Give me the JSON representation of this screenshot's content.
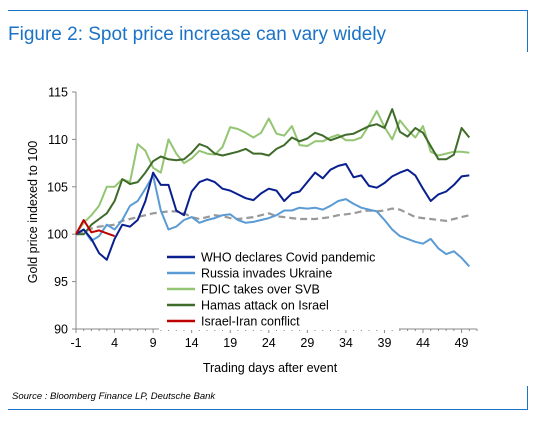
{
  "title": "Figure 2: Spot price increase can vary widely",
  "source": "Source : Bloomberg Finance LP, Deutsche Bank",
  "chart_data": {
    "type": "line",
    "xlabel": "Trading days after event",
    "ylabel": "Gold price indexed to 100",
    "xlim": [
      -1,
      51
    ],
    "ylim": [
      90,
      115
    ],
    "xticks": [
      -1,
      4,
      9,
      14,
      19,
      24,
      29,
      34,
      39,
      44,
      49
    ],
    "yticks": [
      90,
      95,
      100,
      105,
      110,
      115
    ],
    "grid": false,
    "legend_position": "bottom-center",
    "series": [
      {
        "name": "WHO declares Covid pandemic",
        "color": "#0a1f8f",
        "dashed": false,
        "x": [
          -1,
          0,
          1,
          2,
          3,
          4,
          5,
          6,
          7,
          8,
          9,
          10,
          11,
          12,
          13,
          14,
          15,
          16,
          17,
          18,
          19,
          20,
          21,
          22,
          23,
          24,
          25,
          26,
          27,
          28,
          29,
          30,
          31,
          32,
          33,
          34,
          35,
          36,
          37,
          38,
          39,
          40,
          41,
          42,
          43,
          44,
          45,
          46,
          47,
          48,
          49,
          50
        ],
        "y": [
          100,
          100.5,
          99.5,
          98,
          97.3,
          99.5,
          101,
          100.8,
          101.5,
          103.5,
          106.5,
          105.2,
          105.2,
          102.5,
          102,
          104.5,
          105.5,
          105.8,
          105.5,
          104.8,
          104.6,
          104.2,
          103.8,
          103.6,
          104.3,
          104.8,
          104.6,
          103.5,
          104.3,
          104.5,
          105.5,
          106.5,
          105.9,
          106.8,
          107.2,
          107.4,
          106.0,
          106.2,
          105.1,
          104.9,
          105.4,
          106.1,
          106.5,
          106.8,
          106.2,
          104.8,
          103.5,
          104.2,
          104.5,
          105.2,
          106.1,
          106.2
        ]
      },
      {
        "name": "Russia invades Ukraine",
        "color": "#5b9bd5",
        "dashed": false,
        "x": [
          -1,
          0,
          1,
          2,
          3,
          4,
          5,
          6,
          7,
          8,
          9,
          10,
          11,
          12,
          13,
          14,
          15,
          16,
          17,
          18,
          19,
          20,
          21,
          22,
          23,
          24,
          25,
          26,
          27,
          28,
          29,
          30,
          31,
          32,
          33,
          34,
          35,
          36,
          37,
          38,
          39,
          40,
          41,
          42,
          43,
          44,
          45,
          46,
          47,
          48,
          49,
          50
        ],
        "y": [
          100,
          100.5,
          99.3,
          99.8,
          101,
          100.5,
          101.5,
          103,
          103.5,
          104.8,
          106.2,
          102.5,
          100.5,
          100.8,
          101.5,
          101.8,
          101.2,
          101.5,
          101.7,
          102,
          102.1,
          101.5,
          101.2,
          101.3,
          101.5,
          101.7,
          102,
          102.5,
          102.5,
          102.8,
          102.7,
          102.8,
          102.6,
          103,
          103.5,
          103.7,
          103.2,
          102.8,
          102.6,
          102.4,
          101.5,
          100.5,
          99.8,
          99.5,
          99.2,
          99,
          99.5,
          98.5,
          97.9,
          98.2,
          97.5,
          96.6
        ]
      },
      {
        "name": "FDIC takes over SVB",
        "color": "#93c572",
        "dashed": false,
        "x": [
          -1,
          0,
          1,
          2,
          3,
          4,
          5,
          6,
          7,
          8,
          9,
          10,
          11,
          12,
          13,
          14,
          15,
          16,
          17,
          18,
          19,
          20,
          21,
          22,
          23,
          24,
          25,
          26,
          27,
          28,
          29,
          30,
          31,
          32,
          33,
          34,
          35,
          36,
          37,
          38,
          39,
          40,
          41,
          42,
          43,
          44,
          45,
          46,
          47,
          48,
          49,
          50
        ],
        "y": [
          100,
          101.2,
          102,
          103,
          105,
          105,
          105.8,
          105.5,
          109.5,
          108.8,
          107,
          106.5,
          110,
          108.5,
          107.5,
          108,
          108.8,
          108.5,
          108.4,
          109.2,
          111.3,
          111.1,
          110.7,
          110.2,
          110.7,
          112.2,
          110.6,
          110.4,
          111.4,
          109.4,
          109.3,
          109.8,
          109.8,
          110.2,
          110.5,
          109.9,
          109.9,
          110.2,
          111.5,
          113,
          111.3,
          110,
          112,
          111,
          110.2,
          111.4,
          108.7,
          108.3,
          108.5,
          108.7,
          108.7,
          108.6
        ]
      },
      {
        "name": "Hamas attack on Israel",
        "color": "#3f6b2a",
        "dashed": false,
        "x": [
          -1,
          0,
          1,
          2,
          3,
          4,
          5,
          6,
          7,
          8,
          9,
          10,
          11,
          12,
          13,
          14,
          15,
          16,
          17,
          18,
          19,
          20,
          21,
          22,
          23,
          24,
          25,
          26,
          27,
          28,
          29,
          30,
          31,
          32,
          33,
          34,
          35,
          36,
          37,
          38,
          39,
          40,
          41,
          42,
          43,
          44,
          45,
          46,
          47,
          48,
          49,
          50
        ],
        "y": [
          100,
          100,
          101,
          101.6,
          102.2,
          103.5,
          105.8,
          105.3,
          105.5,
          106.5,
          107.7,
          108.2,
          107.9,
          107.8,
          107.9,
          108.6,
          109.5,
          109.2,
          108.5,
          108.3,
          108.5,
          108.7,
          109,
          108.5,
          108.5,
          108.3,
          109,
          109.4,
          110.2,
          109.8,
          110.1,
          110.7,
          110.4,
          109.9,
          110.2,
          110.5,
          110.6,
          111,
          111.4,
          111.6,
          111.2,
          113.2,
          110.8,
          110.3,
          111.2,
          110.7,
          109.3,
          107.9,
          107.9,
          108.4,
          111.2,
          110.2
        ]
      },
      {
        "name": "Israel-Iran conflict",
        "color": "#c00000",
        "dashed": false,
        "x": [
          -1,
          0,
          1,
          2,
          3,
          4
        ],
        "y": [
          100,
          101.5,
          100.2,
          100.4,
          100.1,
          99.8
        ]
      },
      {
        "name": "",
        "color": "#999999",
        "dashed": true,
        "x": [
          -1,
          0,
          1,
          2,
          3,
          4,
          5,
          6,
          7,
          8,
          9,
          10,
          11,
          12,
          13,
          14,
          15,
          16,
          17,
          18,
          19,
          20,
          21,
          22,
          23,
          24,
          25,
          26,
          27,
          28,
          29,
          30,
          31,
          32,
          33,
          34,
          35,
          36,
          37,
          38,
          39,
          40,
          41,
          42,
          43,
          44,
          45,
          46,
          47,
          48,
          49,
          50
        ],
        "y": [
          100,
          100.2,
          100.6,
          100.8,
          100.9,
          101,
          101.4,
          101.6,
          101.8,
          102,
          102.2,
          102.3,
          102.4,
          102.4,
          102.2,
          101.8,
          101.6,
          101.8,
          102,
          101.9,
          101.7,
          101.6,
          101.7,
          101.8,
          102,
          102.2,
          101.9,
          101.8,
          101.7,
          101.6,
          101.6,
          101.6,
          101.7,
          101.8,
          102,
          102.1,
          102.2,
          102.4,
          102.5,
          102.4,
          102.5,
          102.7,
          102.6,
          102.2,
          101.8,
          101.7,
          101.6,
          101.5,
          101.4,
          101.6,
          101.8,
          102
        ]
      }
    ]
  }
}
